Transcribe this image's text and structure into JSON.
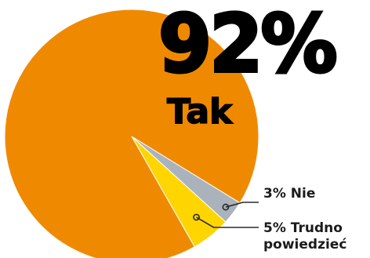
{
  "chart_data": {
    "type": "pie",
    "slices": [
      {
        "label": "Tak",
        "value": 92,
        "color": "#ef8a00"
      },
      {
        "label": "Nie",
        "value": 3,
        "color": "#aab3bc"
      },
      {
        "label": "Trudno powiedzieć",
        "value": 5,
        "color": "#ffd500"
      }
    ],
    "highlight": {
      "value_text": "92%",
      "label": "Tak"
    },
    "annotations": [
      {
        "value_text": "3%",
        "label": "Nie"
      },
      {
        "value_text": "5%",
        "label": "Trudno powiedzieć",
        "lines": [
          "5% Trudno",
          "powiedzieć"
        ]
      }
    ]
  }
}
